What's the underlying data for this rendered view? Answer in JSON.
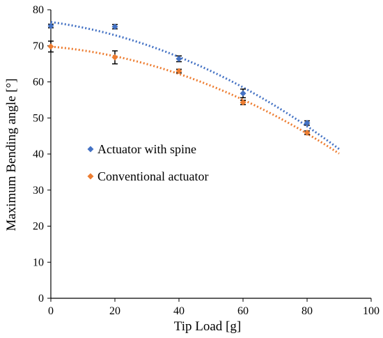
{
  "chart_data": {
    "type": "scatter",
    "title": "",
    "xlabel": "Tip Load [g]",
    "ylabel": "Maximum Bending angle [°]",
    "xlim": [
      0,
      100
    ],
    "ylim": [
      0,
      80
    ],
    "xticks": [
      "0",
      "20",
      "40",
      "60",
      "80",
      "100"
    ],
    "yticks": [
      "0",
      "10",
      "20",
      "30",
      "40",
      "50",
      "60",
      "70",
      "80"
    ],
    "grid": false,
    "legend_position": "middle-left",
    "series": [
      {
        "name": "Actuator with spine",
        "color": "#4472C4",
        "marker": "diamond",
        "x": [
          0,
          20,
          40,
          60,
          80
        ],
        "y": [
          75.5,
          75.3,
          66.4,
          56.8,
          48.6
        ],
        "error": [
          0.5,
          0.6,
          0.8,
          1.2,
          0.6
        ],
        "trendline": {
          "style": "dotted",
          "x": [
            0,
            90
          ],
          "y_start": 76.3,
          "y_end": 41.8
        }
      },
      {
        "name": "Conventional actuator",
        "color": "#ED7D31",
        "marker": "diamond",
        "x": [
          0,
          20,
          40,
          60,
          80
        ],
        "y": [
          69.8,
          66.8,
          63.0,
          54.3,
          45.9
        ],
        "error": [
          1.5,
          1.8,
          0.5,
          0.6,
          0.5
        ],
        "trendline": {
          "style": "dotted",
          "x": [
            0,
            90
          ],
          "y_start": 69.8,
          "y_end": 41.1
        }
      }
    ]
  }
}
